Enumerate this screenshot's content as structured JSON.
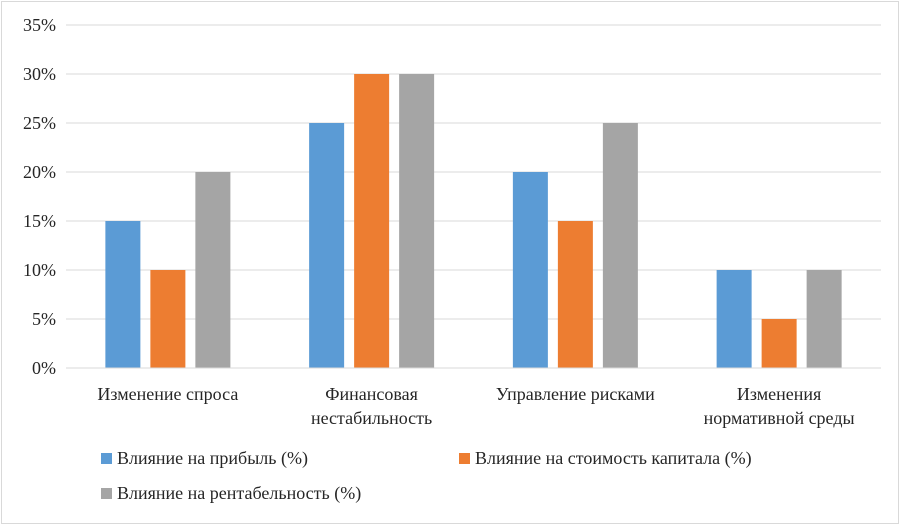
{
  "chart_data": {
    "type": "bar",
    "categories": [
      [
        "Изменение спроса"
      ],
      [
        "Финансовая",
        "нестабильность"
      ],
      [
        "Управление рисками"
      ],
      [
        "Изменения",
        "нормативной среды"
      ]
    ],
    "series": [
      {
        "name": "Влияние на прибыль (%)",
        "color": "#5b9bd5",
        "values": [
          15,
          25,
          20,
          10
        ]
      },
      {
        "name": "Влияние на стоимость капитала (%)",
        "color": "#ed7d31",
        "values": [
          10,
          30,
          15,
          5
        ]
      },
      {
        "name": "Влияние на рентабельность (%)",
        "color": "#a5a5a5",
        "values": [
          20,
          30,
          25,
          10
        ]
      }
    ],
    "y_ticks": [
      "0%",
      "5%",
      "10%",
      "15%",
      "20%",
      "25%",
      "30%",
      "35%"
    ],
    "ylim": [
      0,
      35
    ],
    "y_step": 5,
    "grid": true,
    "gridline_color": "#d9d9d9",
    "legend_position": "bottom"
  }
}
